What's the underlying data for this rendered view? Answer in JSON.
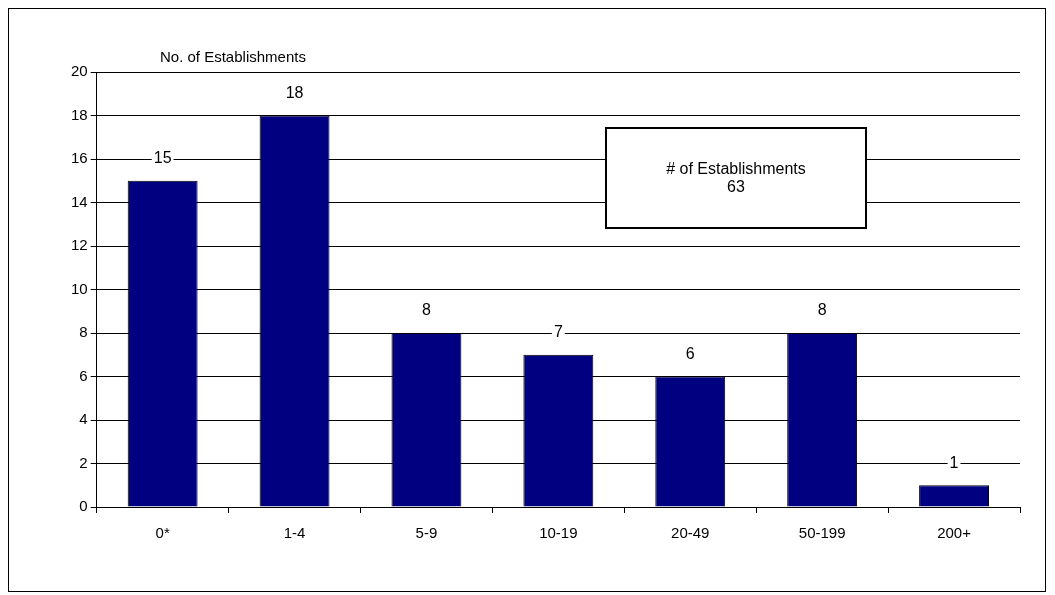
{
  "chart_data": {
    "type": "bar",
    "ylabel": "No. of Establishments",
    "categories": [
      "0*",
      "1-4",
      "5-9",
      "10-19",
      "20-49",
      "50-199",
      "200+"
    ],
    "values": [
      15,
      18,
      8,
      7,
      6,
      8,
      1
    ],
    "color": "#000080",
    "ylim": [
      0,
      20
    ],
    "yticks": [
      0,
      2,
      4,
      6,
      8,
      10,
      12,
      14,
      16,
      18,
      20
    ],
    "grid": "y",
    "legend": false,
    "data_labels": true,
    "annotations": [
      "# of Establishments",
      "63"
    ]
  }
}
